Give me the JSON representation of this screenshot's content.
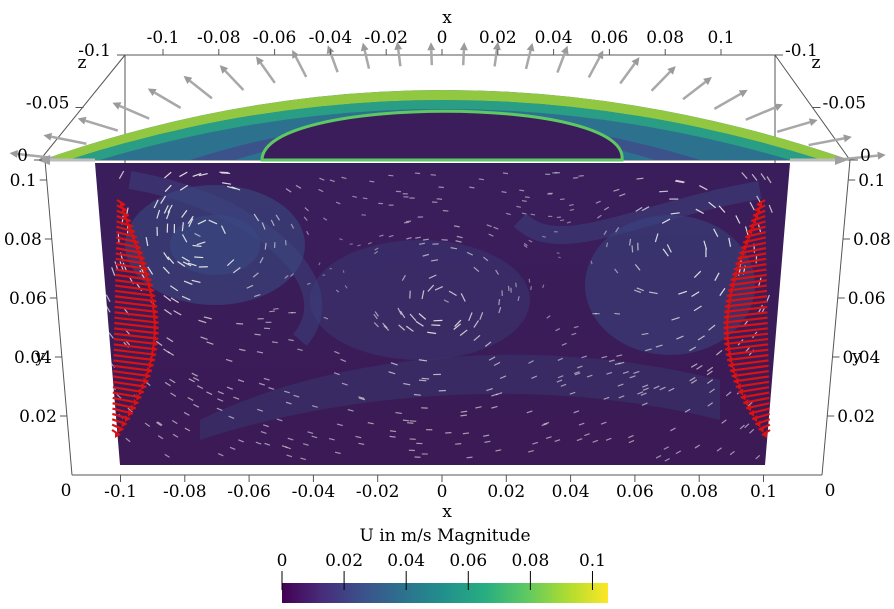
{
  "chart_data": {
    "type": "heatmap",
    "title": "",
    "field": "U in m/s Magnitude",
    "colormap": "viridis",
    "colorbar": {
      "title": "U in m/s Magnitude",
      "range": [
        0,
        0.105
      ],
      "ticks": [
        "0",
        "0.02",
        "0.04",
        "0.06",
        "0.08",
        "0.1"
      ],
      "tick_values": [
        0,
        0.02,
        0.04,
        0.06,
        0.08,
        0.1
      ]
    },
    "axes": {
      "x": {
        "label": "x",
        "range": [
          -0.11,
          0.11
        ],
        "ticks_top": [
          "-0.1",
          "-0.08",
          "-0.06",
          "-0.04",
          "-0.02",
          "0",
          "0.02",
          "0.04",
          "0.06",
          "0.08",
          "0.1"
        ],
        "ticks_bottom": [
          "-0.1",
          "-0.08",
          "-0.06",
          "-0.04",
          "-0.02",
          "0",
          "0.02",
          "0.04",
          "0.06",
          "0.08",
          "0.1"
        ],
        "tick_values": [
          -0.1,
          -0.08,
          -0.06,
          -0.04,
          -0.02,
          0,
          0.02,
          0.04,
          0.06,
          0.08,
          0.1
        ]
      },
      "y": {
        "label": "y",
        "range": [
          0,
          0.11
        ],
        "ticks": [
          "0.02",
          "0.04",
          "0.06",
          "0.08",
          "0.1"
        ],
        "tick_values": [
          0.02,
          0.04,
          0.06,
          0.08,
          0.1
        ],
        "zero_label": "0"
      },
      "z": {
        "label": "z",
        "range": [
          -0.1,
          0
        ],
        "ticks": [
          "-0.1",
          "-0.05",
          "0"
        ],
        "tick_values": [
          -0.1,
          -0.05,
          0
        ]
      }
    },
    "grid": false,
    "vortices": [
      {
        "x": -0.075,
        "y": 0.08,
        "strength": 0.035
      },
      {
        "x": 0.075,
        "y": 0.075,
        "strength": 0.03
      },
      {
        "x": 0.0,
        "y": 0.055,
        "strength": 0.02
      }
    ],
    "wall_jets": [
      {
        "side": "left",
        "x": -0.098,
        "y_range": [
          0.02,
          0.1
        ],
        "vector_color": "#dd1111"
      },
      {
        "side": "right",
        "x": 0.098,
        "y_range": [
          0.02,
          0.1
        ],
        "vector_color": "#dd1111"
      }
    ],
    "surface_arrow_color": "#a8a8a8",
    "interior_vector_color": "#e8e8e8"
  }
}
